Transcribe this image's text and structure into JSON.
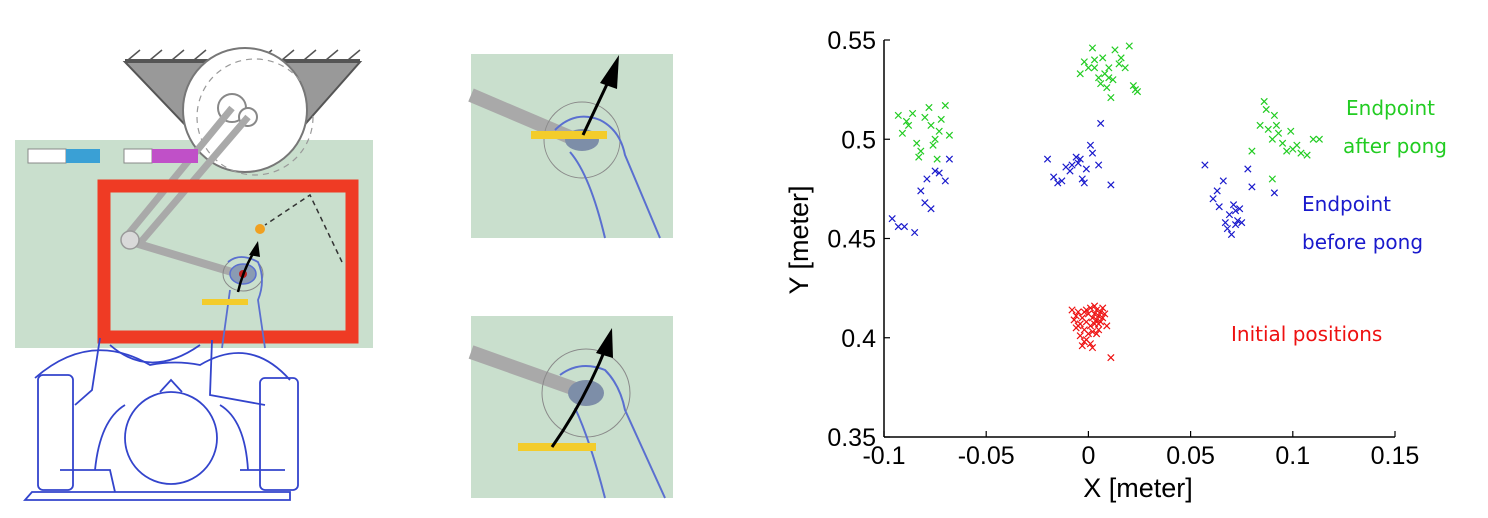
{
  "colors": {
    "panel_bg": "#c9dfcd",
    "outline": "#5a6fd0",
    "red_frame": "#ef3b24",
    "bar_yellow": "#f3cc2b",
    "swatch_cyan": "#3aa0d5",
    "swatch_magenta": "#c050c8",
    "target_orange": "#f0a020",
    "green": "#22cc22",
    "blue": "#1a1acc",
    "red": "#ee1111"
  },
  "icons": [
    "robot-arm-icon",
    "subject-top-view-icon",
    "hand-icon",
    "arrow-icon"
  ],
  "chart_data": {
    "type": "scatter",
    "xlabel": "X [meter]",
    "ylabel": "Y [meter]",
    "xlim": [
      -0.1,
      0.15
    ],
    "ylim": [
      0.35,
      0.55
    ],
    "xticks": [
      "-0.1",
      "-0.05",
      "0",
      "0.05",
      "0.1",
      "0.15"
    ],
    "yticks": [
      "0.35",
      "0.4",
      "0.45",
      "0.5",
      "0.55"
    ],
    "grid": false,
    "marker": "x",
    "annotations": {
      "endpoint_after_line1": "Endpoint",
      "endpoint_after_line2": "after pong",
      "endpoint_before_line1": "Endpoint",
      "endpoint_before_line2": "before pong",
      "initial": "Initial positions"
    },
    "series": [
      {
        "key": "after",
        "color": "#22cc22",
        "points": [
          [
            -0.093,
            0.512
          ],
          [
            -0.091,
            0.503
          ],
          [
            -0.088,
            0.507
          ],
          [
            -0.086,
            0.513
          ],
          [
            -0.084,
            0.498
          ],
          [
            -0.082,
            0.494
          ],
          [
            -0.08,
            0.511
          ],
          [
            -0.078,
            0.516
          ],
          [
            -0.077,
            0.507
          ],
          [
            -0.075,
            0.5
          ],
          [
            -0.073,
            0.504
          ],
          [
            -0.072,
            0.51
          ],
          [
            -0.07,
            0.517
          ],
          [
            -0.068,
            0.502
          ],
          [
            -0.083,
            0.491
          ],
          [
            -0.074,
            0.49
          ],
          [
            -0.089,
            0.509
          ],
          [
            -0.076,
            0.497
          ],
          [
            -0.004,
            0.533
          ],
          [
            -0.002,
            0.539
          ],
          [
            0,
            0.536
          ],
          [
            0.002,
            0.546
          ],
          [
            0.003,
            0.54
          ],
          [
            0.005,
            0.531
          ],
          [
            0.006,
            0.528
          ],
          [
            0.007,
            0.541
          ],
          [
            0.008,
            0.533
          ],
          [
            0.009,
            0.526
          ],
          [
            0.01,
            0.536
          ],
          [
            0.011,
            0.521
          ],
          [
            0.012,
            0.53
          ],
          [
            0.013,
            0.545
          ],
          [
            0.015,
            0.538
          ],
          [
            0.016,
            0.541
          ],
          [
            0.018,
            0.536
          ],
          [
            0.02,
            0.547
          ],
          [
            0.022,
            0.527
          ],
          [
            0.023,
            0.525
          ],
          [
            0.024,
            0.524
          ],
          [
            0.003,
            0.536
          ],
          [
            0.01,
            0.531
          ],
          [
            0.08,
            0.494
          ],
          [
            0.084,
            0.507
          ],
          [
            0.086,
            0.519
          ],
          [
            0.087,
            0.515
          ],
          [
            0.088,
            0.505
          ],
          [
            0.09,
            0.5
          ],
          [
            0.091,
            0.512
          ],
          [
            0.092,
            0.507
          ],
          [
            0.093,
            0.503
          ],
          [
            0.095,
            0.498
          ],
          [
            0.097,
            0.494
          ],
          [
            0.099,
            0.504
          ],
          [
            0.1,
            0.495
          ],
          [
            0.102,
            0.497
          ],
          [
            0.104,
            0.493
          ],
          [
            0.107,
            0.492
          ],
          [
            0.11,
            0.5
          ],
          [
            0.113,
            0.5
          ],
          [
            0.09,
            0.48
          ]
        ]
      },
      {
        "key": "before",
        "color": "#1a1acc",
        "points": [
          [
            -0.096,
            0.46
          ],
          [
            -0.093,
            0.456
          ],
          [
            -0.09,
            0.456
          ],
          [
            -0.085,
            0.453
          ],
          [
            -0.082,
            0.474
          ],
          [
            -0.08,
            0.468
          ],
          [
            -0.079,
            0.48
          ],
          [
            -0.077,
            0.465
          ],
          [
            -0.075,
            0.484
          ],
          [
            -0.073,
            0.483
          ],
          [
            -0.07,
            0.479
          ],
          [
            -0.068,
            0.49
          ],
          [
            -0.02,
            0.49
          ],
          [
            -0.017,
            0.481
          ],
          [
            -0.015,
            0.478
          ],
          [
            -0.013,
            0.479
          ],
          [
            -0.011,
            0.486
          ],
          [
            -0.009,
            0.484
          ],
          [
            -0.008,
            0.487
          ],
          [
            -0.006,
            0.491
          ],
          [
            -0.005,
            0.488
          ],
          [
            -0.003,
            0.48
          ],
          [
            -0.002,
            0.478
          ],
          [
            -0.001,
            0.485
          ],
          [
            0.001,
            0.497
          ],
          [
            0.002,
            0.493
          ],
          [
            0.005,
            0.487
          ],
          [
            0.006,
            0.508
          ],
          [
            0.011,
            0.477
          ],
          [
            -0.004,
            0.49
          ],
          [
            0.057,
            0.487
          ],
          [
            0.061,
            0.47
          ],
          [
            0.063,
            0.474
          ],
          [
            0.064,
            0.466
          ],
          [
            0.066,
            0.479
          ],
          [
            0.067,
            0.458
          ],
          [
            0.068,
            0.455
          ],
          [
            0.069,
            0.462
          ],
          [
            0.07,
            0.452
          ],
          [
            0.071,
            0.467
          ],
          [
            0.072,
            0.464
          ],
          [
            0.073,
            0.459
          ],
          [
            0.074,
            0.465
          ],
          [
            0.075,
            0.458
          ],
          [
            0.078,
            0.485
          ],
          [
            0.08,
            0.476
          ],
          [
            0.091,
            0.473
          ],
          [
            0.072,
            0.457
          ]
        ]
      },
      {
        "key": "initial",
        "color": "#ee1111",
        "points": [
          [
            -0.008,
            0.414
          ],
          [
            -0.007,
            0.409
          ],
          [
            -0.006,
            0.411
          ],
          [
            -0.005,
            0.406
          ],
          [
            -0.005,
            0.413
          ],
          [
            -0.004,
            0.401
          ],
          [
            -0.004,
            0.407
          ],
          [
            -0.003,
            0.396
          ],
          [
            -0.003,
            0.41
          ],
          [
            -0.002,
            0.404
          ],
          [
            -0.002,
            0.413
          ],
          [
            -0.001,
            0.399
          ],
          [
            -0.001,
            0.408
          ],
          [
            0,
            0.402
          ],
          [
            0,
            0.412
          ],
          [
            0.001,
            0.397
          ],
          [
            0.001,
            0.406
          ],
          [
            0.001,
            0.415
          ],
          [
            0.002,
            0.41
          ],
          [
            0.002,
            0.403
          ],
          [
            0.003,
            0.412
          ],
          [
            0.003,
            0.407
          ],
          [
            0.004,
            0.414
          ],
          [
            0.004,
            0.409
          ],
          [
            0.005,
            0.411
          ],
          [
            0.005,
            0.404
          ],
          [
            0.006,
            0.413
          ],
          [
            0.006,
            0.408
          ],
          [
            0.007,
            0.41
          ],
          [
            0.008,
            0.412
          ],
          [
            0.009,
            0.406
          ],
          [
            -0.006,
            0.405
          ],
          [
            -0.002,
            0.398
          ],
          [
            0.002,
            0.395
          ],
          [
            0.004,
            0.402
          ],
          [
            0.007,
            0.415
          ],
          [
            0.011,
            0.39
          ],
          [
            0.003,
            0.416
          ],
          [
            -0.001,
            0.414
          ],
          [
            0.005,
            0.407
          ]
        ]
      }
    ]
  }
}
